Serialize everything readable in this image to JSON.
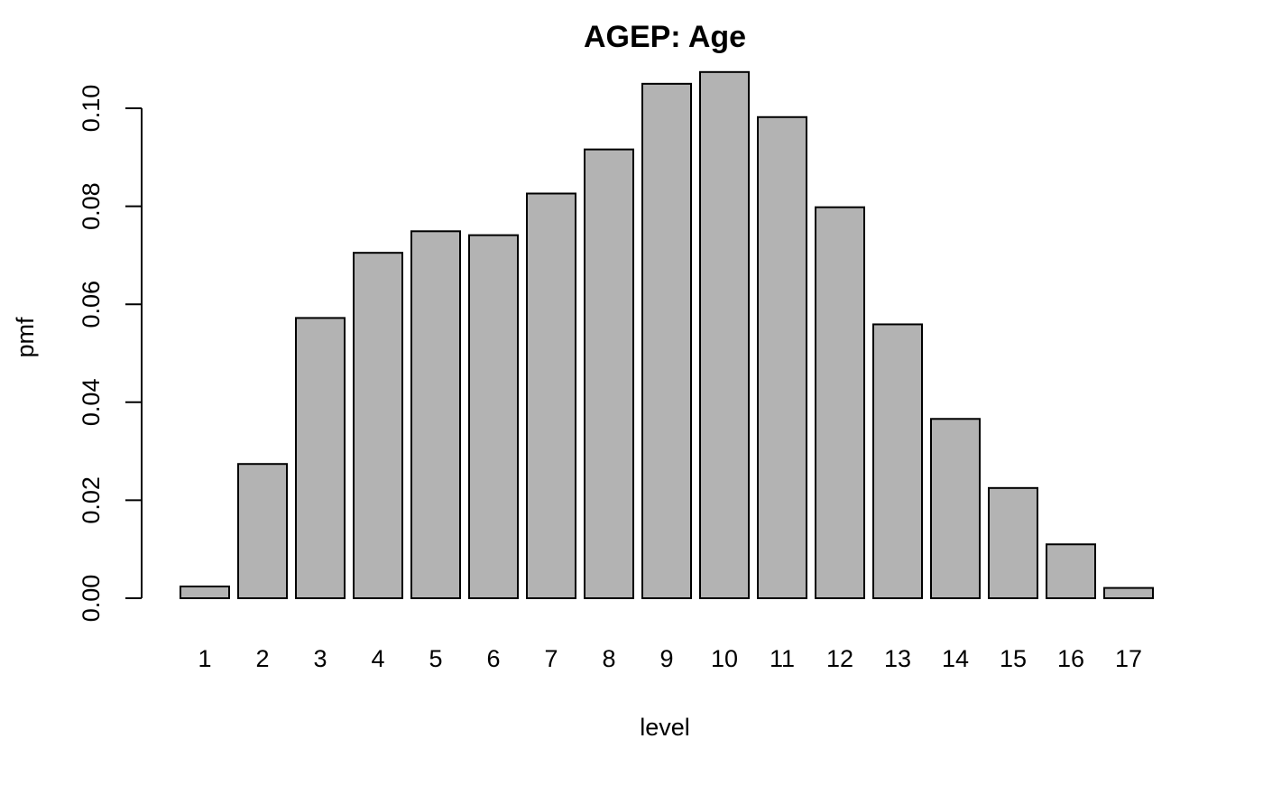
{
  "chart_data": {
    "type": "bar",
    "title": "AGEP: Age",
    "xlabel": "level",
    "ylabel": "pmf",
    "categories": [
      "1",
      "2",
      "3",
      "4",
      "5",
      "6",
      "7",
      "8",
      "9",
      "10",
      "11",
      "12",
      "13",
      "14",
      "15",
      "16",
      "17"
    ],
    "values": [
      0.0024,
      0.0274,
      0.0572,
      0.0705,
      0.0749,
      0.0741,
      0.0826,
      0.0916,
      0.105,
      0.1074,
      0.0982,
      0.0798,
      0.0559,
      0.0366,
      0.0225,
      0.011,
      0.0021
    ],
    "ylim": [
      0,
      0.1
    ],
    "yticks": [
      0,
      0.02,
      0.04,
      0.06,
      0.08,
      0.1
    ],
    "ytick_labels": [
      "0.00",
      "0.02",
      "0.04",
      "0.06",
      "0.08",
      "0.10"
    ],
    "grid": false,
    "legend": "none",
    "colors": {
      "bar_fill": "#b3b3b3",
      "bar_stroke": "#000000",
      "axis": "#000000",
      "background": "#ffffff"
    }
  }
}
